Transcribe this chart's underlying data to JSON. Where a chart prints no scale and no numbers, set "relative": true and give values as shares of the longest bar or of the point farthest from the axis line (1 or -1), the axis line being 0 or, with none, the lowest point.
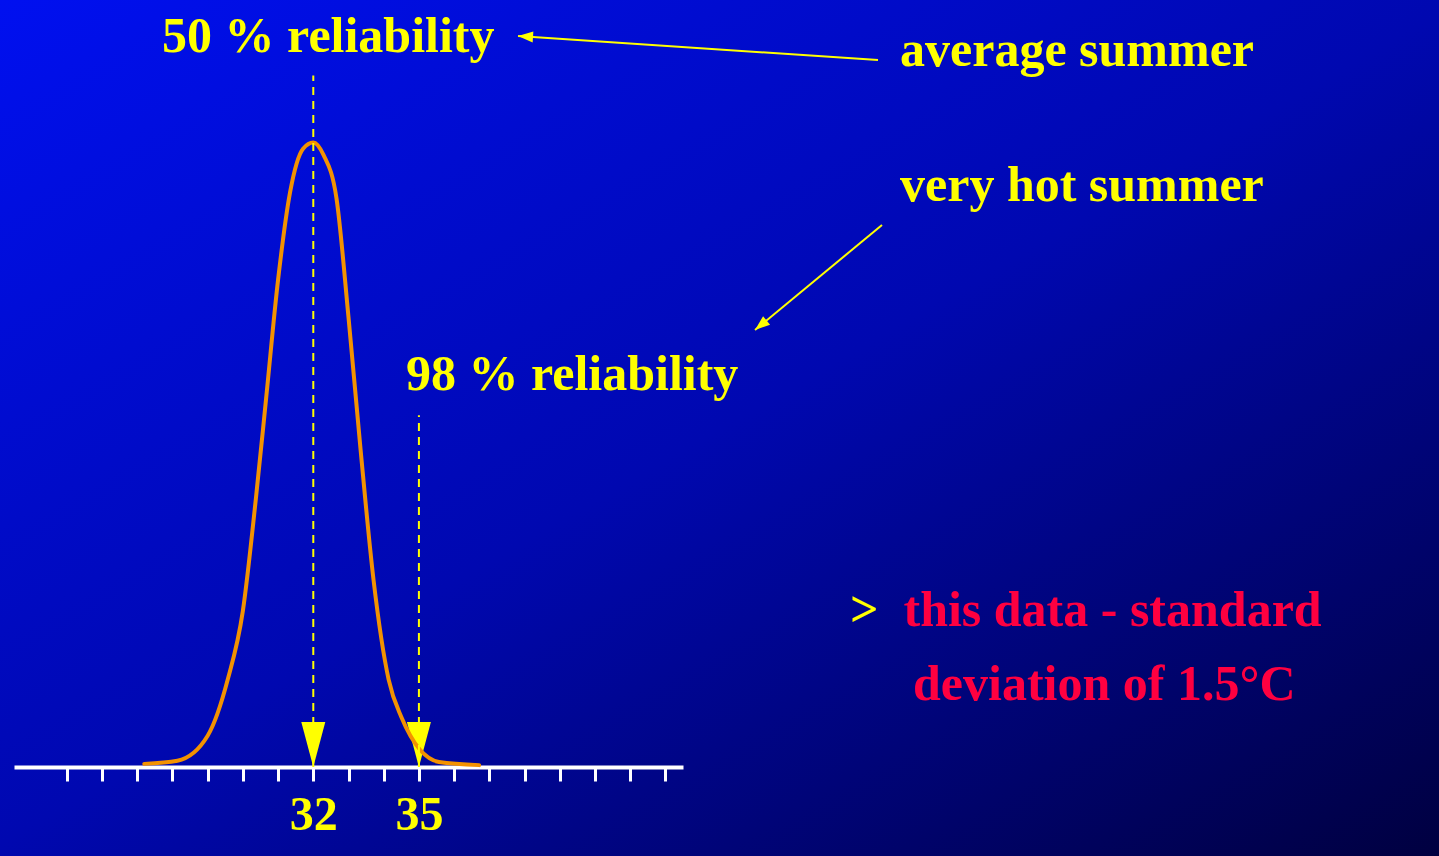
{
  "chart_data": {
    "type": "line",
    "relative": true,
    "color": "#f39200",
    "line_style": "solid",
    "tick_labels": "x",
    "x": [
      27.2,
      28.14,
      29.0,
      29.57,
      30.0,
      30.37,
      30.66,
      31.0,
      31.34,
      31.71,
      32.0,
      32.29,
      32.66,
      33.0,
      33.34,
      33.71,
      34.14,
      34.5,
      35.57,
      36.71
    ],
    "values": [
      0.005,
      0.01,
      0.05,
      0.14,
      0.25,
      0.43,
      0.59,
      0.78,
      0.92,
      0.99,
      1,
      0.98,
      0.91,
      0.72,
      0.51,
      0.3,
      0.14,
      0.08,
      0.008,
      0.003
    ],
    "xlim": [
      23.5,
      42.5
    ],
    "xticks": [
      {
        "value": 25,
        "label": null
      },
      {
        "value": 26,
        "label": null
      },
      {
        "value": 27,
        "label": null
      },
      {
        "value": 28,
        "label": null
      },
      {
        "value": 29,
        "label": null
      },
      {
        "value": 30,
        "label": null
      },
      {
        "value": 31,
        "label": null
      },
      32,
      {
        "value": 33,
        "label": null
      },
      {
        "value": 34,
        "label": null
      },
      35,
      {
        "value": 36,
        "label": null
      },
      {
        "value": 37,
        "label": null
      },
      {
        "value": 38,
        "label": null
      },
      {
        "value": 39,
        "label": null
      },
      {
        "value": 40,
        "label": null
      },
      {
        "value": 41,
        "label": null
      },
      {
        "value": 42,
        "label": null
      }
    ],
    "ref_lines": [
      {
        "axis": "x",
        "value": 32,
        "label": "50 % reliability",
        "color": "#ffff00",
        "line_style": "dashed"
      },
      {
        "axis": "x",
        "value": 35,
        "label": "98 % reliability",
        "color": "#ffff00",
        "line_style": "dashed"
      }
    ],
    "annotations": [
      "average summer",
      "very hot summer",
      "> this data - standard deviation of 1.5°C"
    ]
  }
}
